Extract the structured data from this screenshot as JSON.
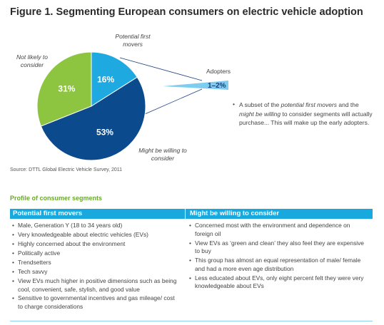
{
  "chart_data": {
    "type": "pie",
    "title": "Figure 1. Segmenting European consumers on electric vehicle adoption",
    "categories": [
      "Potential first movers",
      "Might be willing to consider",
      "Not likely to consider"
    ],
    "values": [
      16,
      53,
      31
    ],
    "value_labels": [
      "16%",
      "53%",
      "31%"
    ],
    "colors": [
      "#1ea9e1",
      "#0c4a8e",
      "#8dc540"
    ],
    "callout": {
      "label": "Adopters",
      "value_label": "1–2%"
    }
  },
  "note": [
    "A subset of the ",
    "potential first movers",
    " and the ",
    "might be willing",
    " to consider segments will actually purchase... This will make up the early adopters."
  ],
  "source": "Source: DTTL Global Electric Vehicle Survey, 2011",
  "profile": {
    "title": "Profile of consumer segments",
    "columns": [
      {
        "header": "Potential first movers",
        "items": [
          "Male, Generation Y (18 to 34 years old)",
          "Very knowledgeable about electric vehicles (EVs)",
          "Highly concerned about the environment",
          "Politically active",
          "Trendsetters",
          "Tech savvy",
          "View EVs much higher in positive dimensions such as being cool, convenient, safe, stylish, and good value",
          "Sensitive to governmental incentives and gas mileage/ cost to charge considerations"
        ]
      },
      {
        "header": "Might be willing to consider",
        "items": [
          "Concerned most with the environment and dependence on foreign oil",
          "View EVs as ‘green and clean’ they also feel they are expensive to buy",
          "This group has almost an equal representation of male/ female and had a more even age distribution",
          "Less educated about EVs, only eight percent felt they were very knowledgeable about EVs"
        ]
      }
    ]
  }
}
